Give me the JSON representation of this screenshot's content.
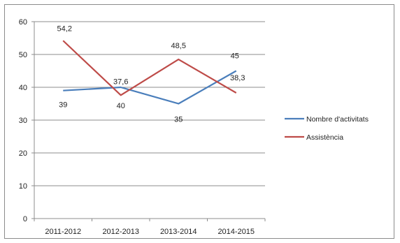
{
  "chart_data": {
    "type": "line",
    "categories": [
      "2011-2012",
      "2012-2013",
      "2013-2014",
      "2014-2015"
    ],
    "series": [
      {
        "name": "Nombre d'activitats",
        "values": [
          39,
          40,
          35,
          45
        ],
        "labels": [
          "39",
          "40",
          "35",
          "45"
        ],
        "color": "#4a7ebb"
      },
      {
        "name": "Assistència",
        "values": [
          54.2,
          37.6,
          48.5,
          38.3
        ],
        "labels": [
          "54,2",
          "37,6",
          "48,5",
          "38,3"
        ],
        "color": "#be4b48"
      }
    ],
    "yticks": [
      "0",
      "10",
      "20",
      "30",
      "40",
      "50",
      "60"
    ],
    "ylim": [
      0,
      60
    ],
    "title": "",
    "xlabel": "",
    "ylabel": "",
    "grid": true,
    "legend_position": "right"
  }
}
